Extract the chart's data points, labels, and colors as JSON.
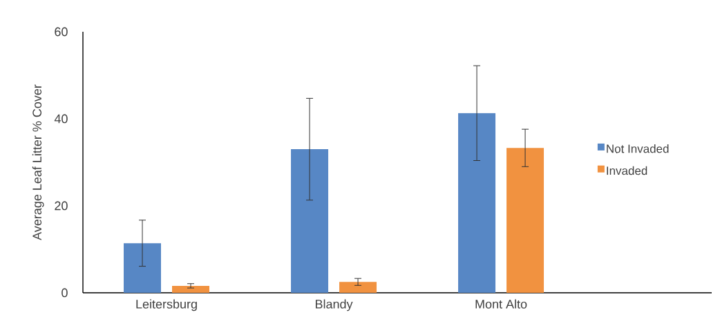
{
  "chart_data": {
    "type": "bar",
    "ylabel": "Average Leaf Litter % Cover",
    "categories": [
      "Leitersburg",
      "Blandy",
      "Mont Alto"
    ],
    "series": [
      {
        "name": "Not Invaded",
        "color": "#5787c5",
        "values": [
          11.4,
          33.0,
          41.3
        ],
        "errors": [
          5.3,
          11.7,
          10.9
        ]
      },
      {
        "name": "Invaded",
        "color": "#f19240",
        "values": [
          1.6,
          2.5,
          33.3
        ],
        "errors": [
          0.5,
          0.8,
          4.3
        ]
      }
    ],
    "ylim": [
      0,
      60
    ],
    "yticks": [
      0,
      20,
      40,
      60
    ],
    "grid": false,
    "legend": "right"
  }
}
